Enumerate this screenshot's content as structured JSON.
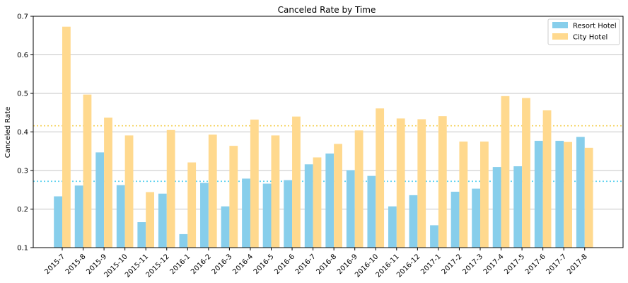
{
  "colors": {
    "resort": "#87CEEB",
    "city": "#FFD98E",
    "resort_mean": "#5FD3F0",
    "city_mean": "#F5D566",
    "grid": "#b0b0b0"
  },
  "chart_data": {
    "type": "bar",
    "title": "Canceled Rate by Time",
    "xlabel": "",
    "ylabel": "Canceled Rate",
    "ylim": [
      0.1,
      0.7
    ],
    "yticks": [
      "0.1",
      "0.2",
      "0.3",
      "0.4",
      "0.5",
      "0.6",
      "0.7"
    ],
    "grid": "horizontal",
    "legend_position": "top-right",
    "categories": [
      "2015-7",
      "2015-8",
      "2015-9",
      "2015-10",
      "2015-11",
      "2015-12",
      "2016-1",
      "2016-2",
      "2016-3",
      "2016-4",
      "2016-5",
      "2016-6",
      "2016-7",
      "2016-8",
      "2016-9",
      "2016-10",
      "2016-11",
      "2016-12",
      "2017-1",
      "2017-2",
      "2017-3",
      "2017-4",
      "2017-5",
      "2017-6",
      "2017-7",
      "2017-8"
    ],
    "series": [
      {
        "name": "Resort Hotel",
        "values": [
          0.233,
          0.261,
          0.347,
          0.262,
          0.166,
          0.24,
          0.135,
          0.268,
          0.207,
          0.279,
          0.266,
          0.275,
          0.316,
          0.344,
          0.301,
          0.286,
          0.207,
          0.236,
          0.158,
          0.245,
          0.253,
          0.309,
          0.311,
          0.377,
          0.377,
          0.387
        ]
      },
      {
        "name": "City Hotel",
        "values": [
          0.673,
          0.497,
          0.437,
          0.391,
          0.244,
          0.405,
          0.321,
          0.393,
          0.364,
          0.432,
          0.391,
          0.44,
          0.334,
          0.369,
          0.404,
          0.461,
          0.435,
          0.433,
          0.441,
          0.375,
          0.375,
          0.493,
          0.488,
          0.456,
          0.374,
          0.359
        ]
      }
    ],
    "reference_lines": [
      {
        "series": "Resort Hotel",
        "value": 0.272,
        "style": "dotted"
      },
      {
        "series": "City Hotel",
        "value": 0.416,
        "style": "dotted"
      }
    ]
  }
}
